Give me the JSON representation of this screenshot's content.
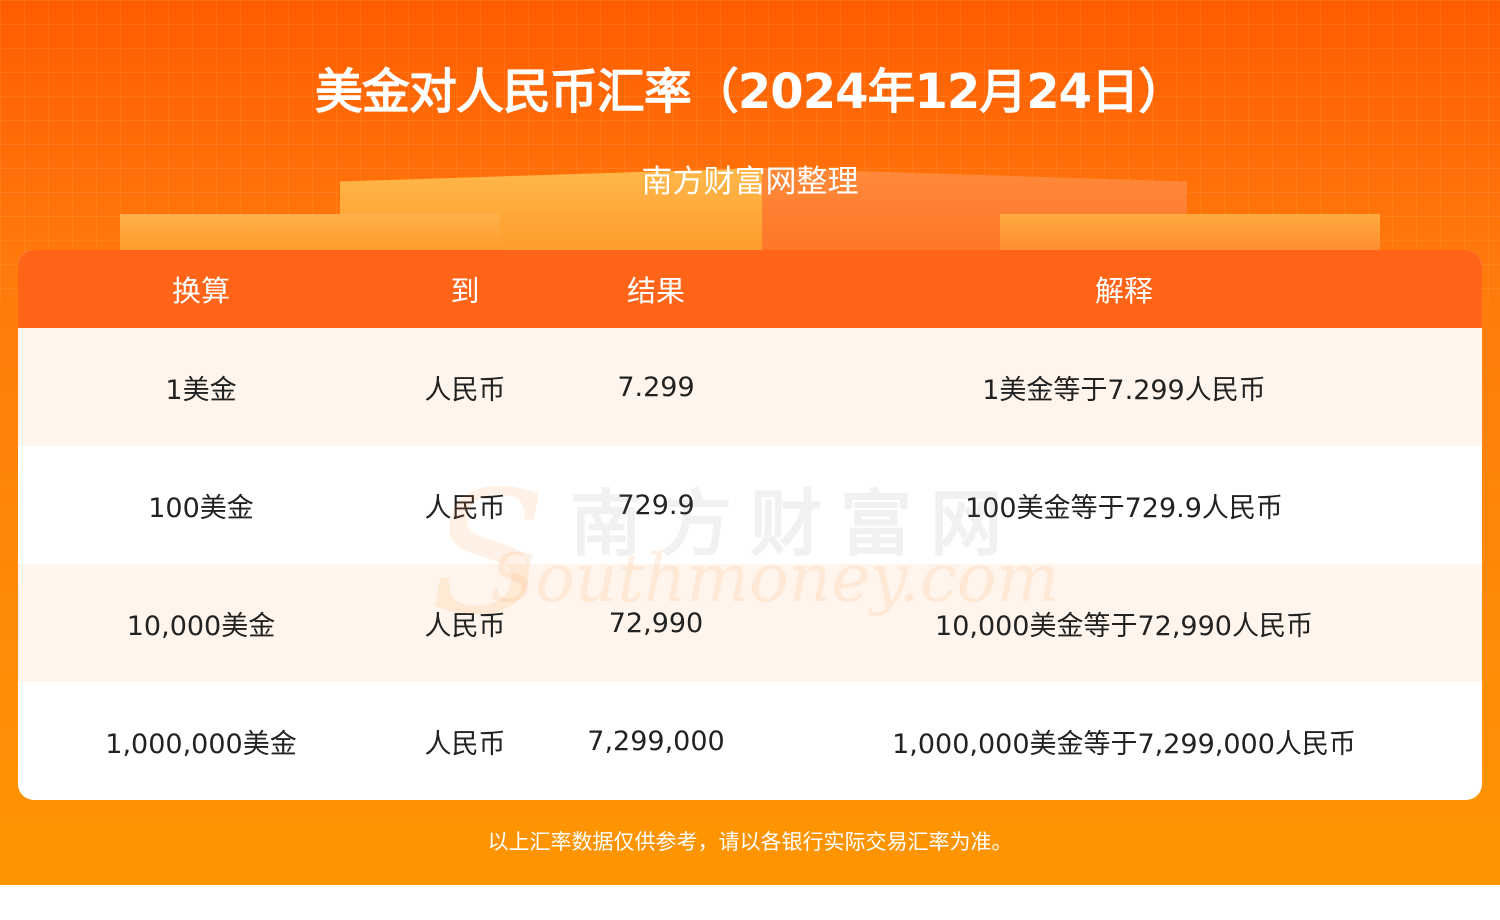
{
  "header": {
    "title": "美金对人民币汇率（2024年12月24日）",
    "subtitle": "南方财富网整理"
  },
  "table": {
    "columns": [
      "换算",
      "到",
      "结果",
      "解释"
    ],
    "rows": [
      [
        "1美金",
        "人民币",
        "7.299",
        "1美金等于7.299人民币"
      ],
      [
        "100美金",
        "人民币",
        "729.9",
        "100美金等于729.9人民币"
      ],
      [
        "10,000美金",
        "人民币",
        "72,990",
        "10,000美金等于72,990人民币"
      ],
      [
        "1,000,000美金",
        "人民币",
        "7,299,000",
        "1,000,000美金等于7,299,000人民币"
      ]
    ]
  },
  "watermark": {
    "cn": "南方财富网",
    "en": "Southmoney.com"
  },
  "footer": {
    "note": "以上汇率数据仅供参考，请以各银行实际交易汇率为准。"
  },
  "colors": {
    "header_row": "#ff6418",
    "alt_row": "#fff5ec",
    "bg_top": "#ff5c00",
    "bg_bottom": "#ff9602"
  }
}
